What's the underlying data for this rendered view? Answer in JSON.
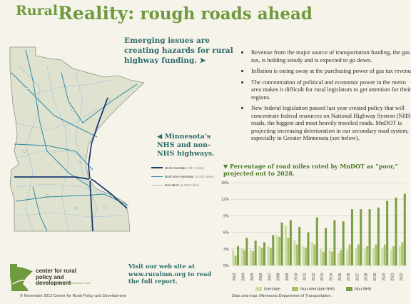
{
  "header": {
    "title_rural": "Rural",
    "title_reality": "Reality:",
    "title_rest": " rough roads ahead",
    "subtitle": "Emerging issues are creating hazards for rural highway funding. ➤"
  },
  "bullets": [
    "Revenue from the major source of transportation funding, the gas tax, is holding steady and is expected to go down.",
    "Inflation is eating away at the purchasing power of gas tax revenue.",
    "The concentration of political and economic power in the metro area makes it difficult for rural legislators to get attention for their regions.",
    "New federal legislation passed last year created policy that will concentrate federal resources on National Highway System (NHS) roads, the biggest and most heavily traveled roads. MnDOT is projecting increasing deterioration in our secondary road system, especially in Greater Minnesota (see below)."
  ],
  "map": {
    "caption": "◀ Minnesota's NHS and non-NHS highways.",
    "legend": [
      {
        "label": "NHS Interstate",
        "note": "(917 miles)"
      },
      {
        "label": "NHS Non-Interstate",
        "note": "(5,425 miles)"
      },
      {
        "label": "Non-NHS",
        "note": "(5,009 miles)"
      }
    ],
    "colors": {
      "interstate": "#1c3c6e",
      "nhs": "#2c8aa5",
      "non_nhs": "#9fc2d8",
      "land": "#dfe2cf",
      "border": "#8a9488"
    }
  },
  "chart_data": {
    "type": "bar",
    "title": "▼ Percentage of road miles rated by MnDOT as “poor,” projected out to 2028.",
    "categories": [
      "2003",
      "2004",
      "2005",
      "2006",
      "2007",
      "2008",
      "2009",
      "2010",
      "2011",
      "2012",
      "2013",
      "2014",
      "2015",
      "2016",
      "2017",
      "2018",
      "2019",
      "2020",
      "2021",
      "2022"
    ],
    "ylim": [
      0,
      15
    ],
    "yticks": [
      "0%",
      "3%",
      "6%",
      "9%",
      "12%",
      "15%"
    ],
    "series": [
      {
        "name": "Interstate",
        "color": "#cfdca0",
        "values": [
          2.8,
          3.2,
          2.8,
          3.5,
          3.5,
          5.5,
          7.2,
          4.5,
          3.5,
          4.2,
          3.0,
          2.8,
          2.3,
          2.8,
          3.2,
          3.0,
          3.2,
          3.2,
          2.8,
          3.5
        ]
      },
      {
        "name": "Non-Interstate NHS",
        "color": "#a8c06a",
        "values": [
          1.8,
          2.8,
          2.6,
          3.2,
          3.2,
          5.2,
          5.0,
          3.8,
          3.2,
          3.8,
          2.5,
          2.5,
          2.8,
          3.8,
          3.8,
          3.5,
          3.8,
          3.8,
          3.5,
          4.2
        ]
      },
      {
        "name": "Non-NHS",
        "color": "#7a9e48",
        "values": [
          3.5,
          5.0,
          4.5,
          4.2,
          5.5,
          7.8,
          8.2,
          7.0,
          6.0,
          8.7,
          6.8,
          8.2,
          8.0,
          10.2,
          10.2,
          10.2,
          10.5,
          11.7,
          12.3,
          13.0
        ]
      }
    ]
  },
  "footer": {
    "logo_name": "center for rural policy and development",
    "logo_tagline": "Seeking Solutions for Greater Minnesota's Future",
    "visit": "Visit our web site at www.ruralmn.org to read the full report.",
    "copyright": "© November 2013 Center for Rural Policy and Development",
    "source": "Data and map: Minnesota Department of Transportation."
  }
}
